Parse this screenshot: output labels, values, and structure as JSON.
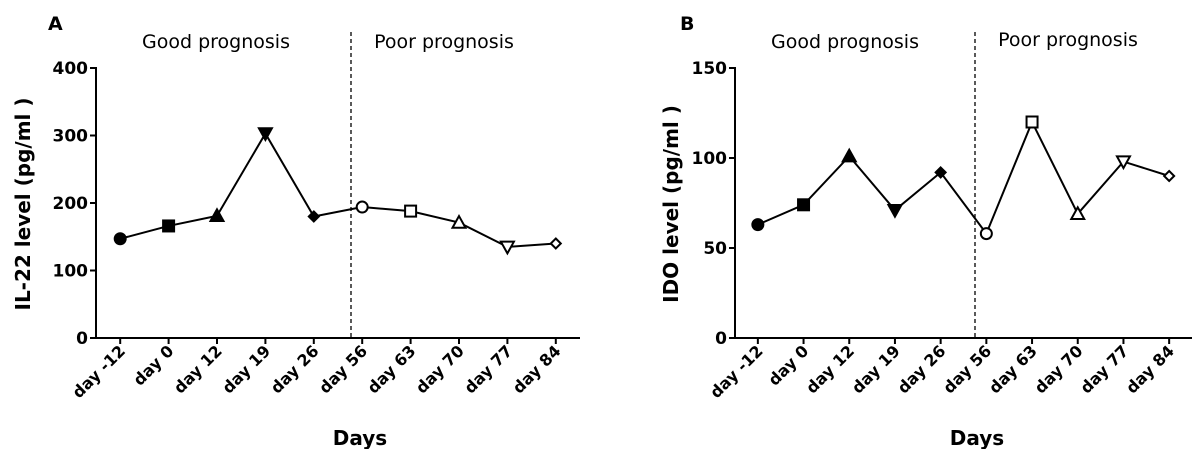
{
  "chart_data": [
    {
      "type": "line",
      "panel": "A",
      "categories": [
        "day -12",
        "day 0",
        "day 12",
        "day 19",
        "day 26",
        "day 56",
        "day 63",
        "day 70",
        "day 77",
        "day 84"
      ],
      "values": [
        147,
        166,
        181,
        303,
        180,
        194,
        188,
        171,
        135,
        140
      ],
      "markers": [
        "circle",
        "square",
        "triangle-up",
        "triangle-down",
        "diamond",
        "circle-open",
        "square-open",
        "triangle-up-open",
        "triangle-down-open",
        "diamond-open"
      ],
      "xlabel": "Days",
      "ylabel": "IL-22 level (pg/ml )",
      "ylim": [
        0,
        400
      ],
      "yticks": [
        "0",
        "100",
        "200",
        "300",
        "400"
      ],
      "regions": [
        "Good prognosis",
        "Poor prognosis"
      ],
      "divider_between": [
        "day 26",
        "day 56"
      ]
    },
    {
      "type": "line",
      "panel": "B",
      "categories": [
        "day -12",
        "day 0",
        "day 12",
        "day 19",
        "day 26",
        "day 56",
        "day 63",
        "day 70",
        "day 77",
        "day 84"
      ],
      "values": [
        63,
        74,
        101,
        71,
        92,
        58,
        120,
        69,
        98,
        90
      ],
      "markers": [
        "circle",
        "square",
        "triangle-up",
        "triangle-down",
        "diamond",
        "circle-open",
        "square-open",
        "triangle-up-open",
        "triangle-down-open",
        "diamond-open"
      ],
      "xlabel": "Days",
      "ylabel": "IDO level (pg/ml )",
      "ylim": [
        0,
        150
      ],
      "yticks": [
        "0",
        "50",
        "100",
        "150"
      ],
      "regions": [
        "Good prognosis",
        "Poor prognosis"
      ],
      "divider_between": [
        "day 26",
        "day 56"
      ]
    }
  ]
}
